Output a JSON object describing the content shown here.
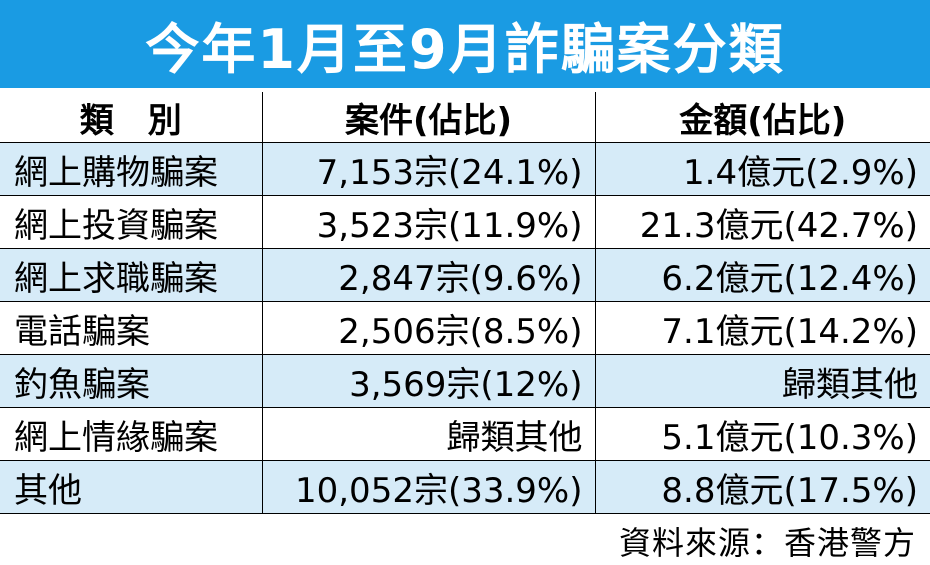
{
  "title": "今年1月至9月詐騙案分類",
  "headers": {
    "category": "類　別",
    "cases": "案件(佔比)",
    "amount": "金額(佔比)"
  },
  "rows": [
    {
      "category": "網上購物騙案",
      "cases": "7,153宗(24.1%)",
      "amount": "1.4億元(2.9%)"
    },
    {
      "category": "網上投資騙案",
      "cases": "3,523宗(11.9%)",
      "amount": "21.3億元(42.7%)"
    },
    {
      "category": "網上求職騙案",
      "cases": "2,847宗(9.6%)",
      "amount": "6.2億元(12.4%)"
    },
    {
      "category": "電話騙案",
      "cases": "2,506宗(8.5%)",
      "amount": "7.1億元(14.2%)"
    },
    {
      "category": "釣魚騙案",
      "cases": "3,569宗(12%)",
      "amount": "歸類其他"
    },
    {
      "category": "網上情緣騙案",
      "cases": "歸類其他",
      "amount": "5.1億元(10.3%)"
    },
    {
      "category": "其他",
      "cases": "10,052宗(33.9%)",
      "amount": "8.8億元(17.5%)"
    }
  ],
  "source": "資料來源：香港警方",
  "colors": {
    "title_bg": "#1a9be3",
    "row_shade": "#d6ebf8"
  }
}
